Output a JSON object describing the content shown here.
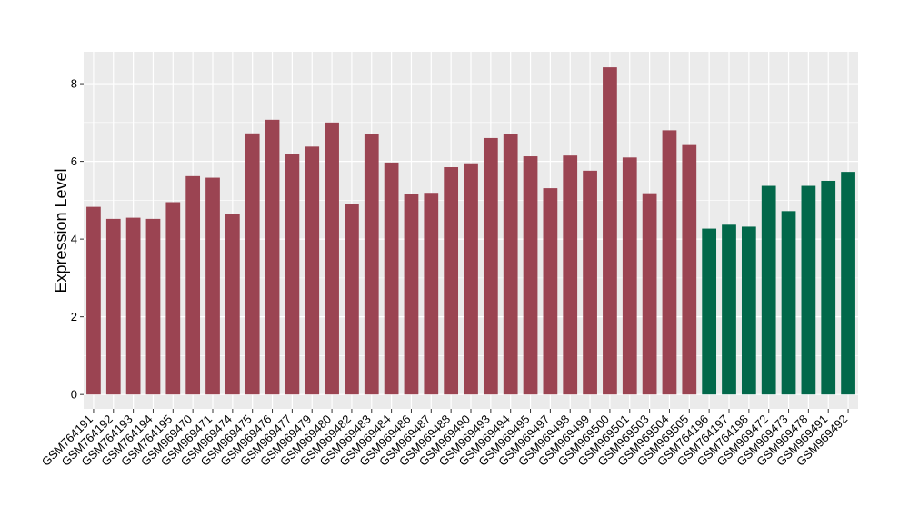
{
  "chart_data": {
    "type": "bar",
    "title": "",
    "xlabel": "",
    "ylabel": "Expression Level",
    "ylim": [
      -0.37,
      8.82
    ],
    "yticks": [
      0,
      2,
      4,
      6,
      8
    ],
    "grid": true,
    "panel_background": "#ebebeb",
    "grid_color": "#ffffff",
    "categories": [
      "GSM764191",
      "GSM764192",
      "GSM764193",
      "GSM764194",
      "GSM764195",
      "GSM969470",
      "GSM969471",
      "GSM969474",
      "GSM969475",
      "GSM969476",
      "GSM969477",
      "GSM969479",
      "GSM969480",
      "GSM969482",
      "GSM969483",
      "GSM969484",
      "GSM969486",
      "GSM969487",
      "GSM969488",
      "GSM969490",
      "GSM969493",
      "GSM969494",
      "GSM969495",
      "GSM969497",
      "GSM969498",
      "GSM969499",
      "GSM969500",
      "GSM969501",
      "GSM969503",
      "GSM969504",
      "GSM969505",
      "GSM764196",
      "GSM764197",
      "GSM764198",
      "GSM969472",
      "GSM969473",
      "GSM969478",
      "GSM969491",
      "GSM969492"
    ],
    "values": [
      4.83,
      4.52,
      4.55,
      4.52,
      4.95,
      5.62,
      5.58,
      4.65,
      6.72,
      7.07,
      6.2,
      6.38,
      7.0,
      4.9,
      6.7,
      5.97,
      5.17,
      5.19,
      5.85,
      5.95,
      6.6,
      6.7,
      6.13,
      5.31,
      6.15,
      5.76,
      8.42,
      6.1,
      5.18,
      6.8,
      6.42,
      4.27,
      4.37,
      4.32,
      5.37,
      4.72,
      5.37,
      5.5,
      5.73
    ],
    "groups": [
      1,
      1,
      1,
      1,
      1,
      1,
      1,
      1,
      1,
      1,
      1,
      1,
      1,
      1,
      1,
      1,
      1,
      1,
      1,
      1,
      1,
      1,
      1,
      1,
      1,
      1,
      1,
      1,
      1,
      1,
      1,
      2,
      2,
      2,
      2,
      2,
      2,
      2,
      2
    ],
    "colors": {
      "1": "#9b4452",
      "2": "#02684a"
    }
  }
}
